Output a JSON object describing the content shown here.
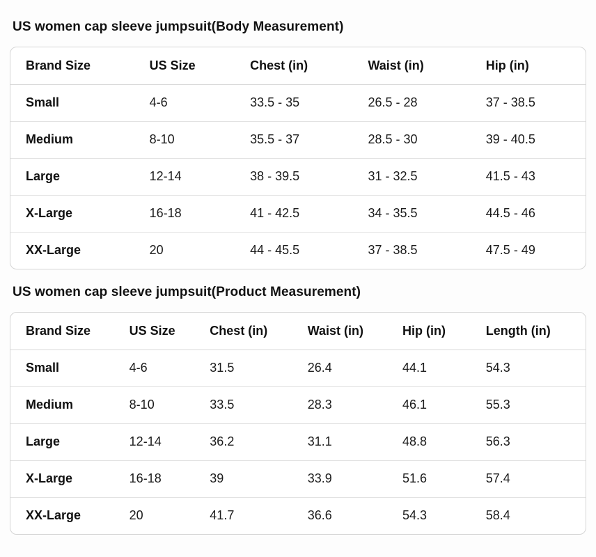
{
  "colors": {
    "text": "#121212",
    "card_border": "#d5d5d5",
    "row_separator": "#e2e2e2",
    "background": "#fdfdfd"
  },
  "tables": [
    {
      "title": "US women cap sleeve jumpsuit(Body Measurement)",
      "columns": [
        "Brand Size",
        "US Size",
        "Chest (in)",
        "Waist (in)",
        "Hip (in)"
      ],
      "rows": [
        [
          "Small",
          "4-6",
          "33.5 - 35",
          "26.5 - 28",
          "37 - 38.5"
        ],
        [
          "Medium",
          "8-10",
          "35.5 - 37",
          "28.5 - 30",
          "39 - 40.5"
        ],
        [
          "Large",
          "12-14",
          "38 - 39.5",
          "31 - 32.5",
          "41.5 - 43"
        ],
        [
          "X-Large",
          "16-18",
          "41 - 42.5",
          "34 - 35.5",
          "44.5 - 46"
        ],
        [
          "XX-Large",
          "20",
          "44 - 45.5",
          "37 - 38.5",
          "47.5 - 49"
        ]
      ]
    },
    {
      "title": "US women cap sleeve jumpsuit(Product Measurement)",
      "columns": [
        "Brand Size",
        "US Size",
        "Chest (in)",
        "Waist (in)",
        "Hip (in)",
        "Length (in)"
      ],
      "rows": [
        [
          "Small",
          "4-6",
          "31.5",
          "26.4",
          "44.1",
          "54.3"
        ],
        [
          "Medium",
          "8-10",
          "33.5",
          "28.3",
          "46.1",
          "55.3"
        ],
        [
          "Large",
          "12-14",
          "36.2",
          "31.1",
          "48.8",
          "56.3"
        ],
        [
          "X-Large",
          "16-18",
          "39",
          "33.9",
          "51.6",
          "57.4"
        ],
        [
          "XX-Large",
          "20",
          "41.7",
          "36.6",
          "54.3",
          "58.4"
        ]
      ]
    }
  ]
}
